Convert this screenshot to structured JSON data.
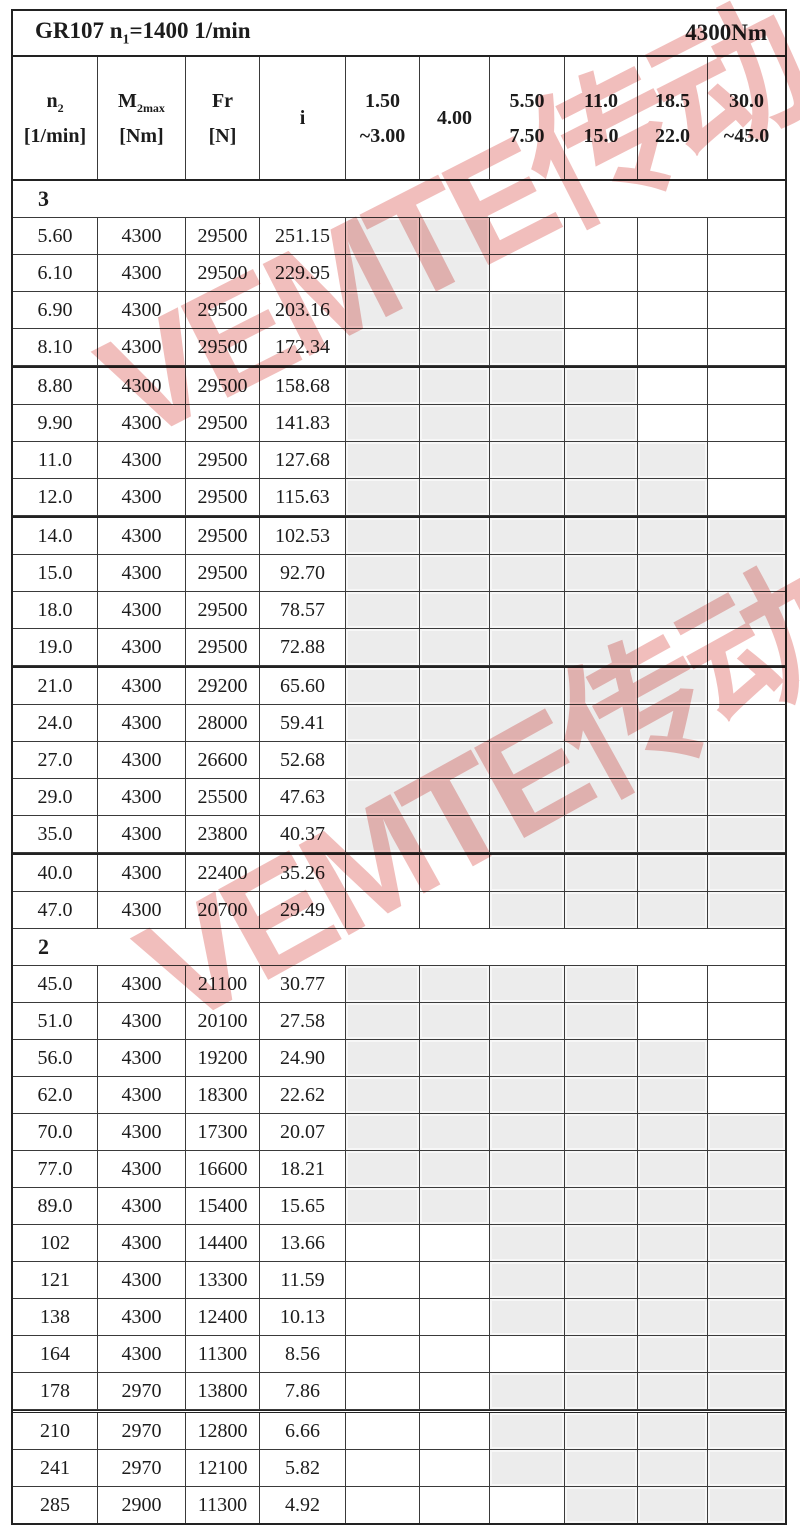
{
  "title": {
    "model_prefix": "GR107 n",
    "model_sub": "1",
    "model_suffix": "=1400 1/min",
    "torque": "4300Nm"
  },
  "columns": [
    {
      "main": "n",
      "sub": "2",
      "line2": "[1/min]"
    },
    {
      "main": "M",
      "sub": "2max",
      "line2": "[Nm]"
    },
    {
      "main": "Fr",
      "sub": "",
      "line2": "[N]"
    },
    {
      "main": "i",
      "sub": "",
      "line2": ""
    },
    {
      "main": "1.50",
      "sub": "",
      "line2": "~3.00"
    },
    {
      "main": "4.00",
      "sub": "",
      "line2": ""
    },
    {
      "main": "5.50",
      "sub": "",
      "line2": "7.50"
    },
    {
      "main": "11.0",
      "sub": "",
      "line2": "15.0"
    },
    {
      "main": "18.5",
      "sub": "",
      "line2": "22.0"
    },
    {
      "main": "30.0",
      "sub": "",
      "line2": "~45.0"
    }
  ],
  "shading_color": "#ececec",
  "watermark": {
    "text": "VEMTE传动",
    "color": "#d9534e"
  },
  "sections": [
    {
      "label": "3",
      "rows": [
        {
          "n2": "5.60",
          "m2max": "4300",
          "fr": "29500",
          "i": "251.15",
          "shaded": [
            1,
            1,
            0,
            0,
            0,
            0
          ],
          "border": ""
        },
        {
          "n2": "6.10",
          "m2max": "4300",
          "fr": "29500",
          "i": "229.95",
          "shaded": [
            1,
            1,
            0,
            0,
            0,
            0
          ],
          "border": ""
        },
        {
          "n2": "6.90",
          "m2max": "4300",
          "fr": "29500",
          "i": "203.16",
          "shaded": [
            1,
            1,
            1,
            0,
            0,
            0
          ],
          "border": ""
        },
        {
          "n2": "8.10",
          "m2max": "4300",
          "fr": "29500",
          "i": "172.34",
          "shaded": [
            1,
            1,
            1,
            0,
            0,
            0
          ],
          "border": ""
        },
        {
          "n2": "8.80",
          "m2max": "4300",
          "fr": "29500",
          "i": "158.68",
          "shaded": [
            1,
            1,
            1,
            1,
            0,
            0
          ],
          "border": "heavy"
        },
        {
          "n2": "9.90",
          "m2max": "4300",
          "fr": "29500",
          "i": "141.83",
          "shaded": [
            1,
            1,
            1,
            1,
            0,
            0
          ],
          "border": ""
        },
        {
          "n2": "11.0",
          "m2max": "4300",
          "fr": "29500",
          "i": "127.68",
          "shaded": [
            1,
            1,
            1,
            1,
            1,
            0
          ],
          "border": ""
        },
        {
          "n2": "12.0",
          "m2max": "4300",
          "fr": "29500",
          "i": "115.63",
          "shaded": [
            1,
            1,
            1,
            1,
            1,
            0
          ],
          "border": ""
        },
        {
          "n2": "14.0",
          "m2max": "4300",
          "fr": "29500",
          "i": "102.53",
          "shaded": [
            1,
            1,
            1,
            1,
            1,
            1
          ],
          "border": "heavy"
        },
        {
          "n2": "15.0",
          "m2max": "4300",
          "fr": "29500",
          "i": "92.70",
          "shaded": [
            1,
            1,
            1,
            1,
            1,
            1
          ],
          "border": ""
        },
        {
          "n2": "18.0",
          "m2max": "4300",
          "fr": "29500",
          "i": "78.57",
          "shaded": [
            1,
            1,
            1,
            1,
            1,
            1
          ],
          "border": ""
        },
        {
          "n2": "19.0",
          "m2max": "4300",
          "fr": "29500",
          "i": "72.88",
          "shaded": [
            1,
            1,
            1,
            1,
            0,
            0
          ],
          "border": ""
        },
        {
          "n2": "21.0",
          "m2max": "4300",
          "fr": "29200",
          "i": "65.60",
          "shaded": [
            1,
            1,
            1,
            1,
            1,
            0
          ],
          "border": "heavy"
        },
        {
          "n2": "24.0",
          "m2max": "4300",
          "fr": "28000",
          "i": "59.41",
          "shaded": [
            1,
            1,
            1,
            1,
            1,
            0
          ],
          "border": ""
        },
        {
          "n2": "27.0",
          "m2max": "4300",
          "fr": "26600",
          "i": "52.68",
          "shaded": [
            1,
            1,
            1,
            1,
            1,
            1
          ],
          "border": ""
        },
        {
          "n2": "29.0",
          "m2max": "4300",
          "fr": "25500",
          "i": "47.63",
          "shaded": [
            1,
            1,
            1,
            1,
            1,
            1
          ],
          "border": ""
        },
        {
          "n2": "35.0",
          "m2max": "4300",
          "fr": "23800",
          "i": "40.37",
          "shaded": [
            1,
            1,
            1,
            1,
            1,
            1
          ],
          "border": ""
        },
        {
          "n2": "40.0",
          "m2max": "4300",
          "fr": "22400",
          "i": "35.26",
          "shaded": [
            0,
            0,
            1,
            1,
            1,
            1
          ],
          "border": "heavy"
        },
        {
          "n2": "47.0",
          "m2max": "4300",
          "fr": "20700",
          "i": "29.49",
          "shaded": [
            0,
            0,
            1,
            1,
            1,
            1
          ],
          "border": ""
        }
      ]
    },
    {
      "label": "2",
      "rows": [
        {
          "n2": "45.0",
          "m2max": "4300",
          "fr": "21100",
          "i": "30.77",
          "shaded": [
            1,
            1,
            1,
            1,
            0,
            0
          ],
          "border": ""
        },
        {
          "n2": "51.0",
          "m2max": "4300",
          "fr": "20100",
          "i": "27.58",
          "shaded": [
            1,
            1,
            1,
            1,
            0,
            0
          ],
          "border": ""
        },
        {
          "n2": "56.0",
          "m2max": "4300",
          "fr": "19200",
          "i": "24.90",
          "shaded": [
            1,
            1,
            1,
            1,
            1,
            0
          ],
          "border": ""
        },
        {
          "n2": "62.0",
          "m2max": "4300",
          "fr": "18300",
          "i": "22.62",
          "shaded": [
            1,
            1,
            1,
            1,
            1,
            0
          ],
          "border": ""
        },
        {
          "n2": "70.0",
          "m2max": "4300",
          "fr": "17300",
          "i": "20.07",
          "shaded": [
            1,
            1,
            1,
            1,
            1,
            1
          ],
          "border": ""
        },
        {
          "n2": "77.0",
          "m2max": "4300",
          "fr": "16600",
          "i": "18.21",
          "shaded": [
            1,
            1,
            1,
            1,
            1,
            1
          ],
          "border": ""
        },
        {
          "n2": "89.0",
          "m2max": "4300",
          "fr": "15400",
          "i": "15.65",
          "shaded": [
            1,
            1,
            1,
            1,
            1,
            1
          ],
          "border": ""
        },
        {
          "n2": "102",
          "m2max": "4300",
          "fr": "14400",
          "i": "13.66",
          "shaded": [
            0,
            0,
            1,
            1,
            1,
            1
          ],
          "border": ""
        },
        {
          "n2": "121",
          "m2max": "4300",
          "fr": "13300",
          "i": "11.59",
          "shaded": [
            0,
            0,
            1,
            1,
            1,
            1
          ],
          "border": ""
        },
        {
          "n2": "138",
          "m2max": "4300",
          "fr": "12400",
          "i": "10.13",
          "shaded": [
            0,
            0,
            1,
            1,
            1,
            1
          ],
          "border": ""
        },
        {
          "n2": "164",
          "m2max": "4300",
          "fr": "11300",
          "i": "8.56",
          "shaded": [
            0,
            0,
            0,
            1,
            1,
            1
          ],
          "border": ""
        },
        {
          "n2": "178",
          "m2max": "2970",
          "fr": "13800",
          "i": "7.86",
          "shaded": [
            0,
            0,
            1,
            1,
            1,
            1
          ],
          "border": ""
        },
        {
          "n2": "210",
          "m2max": "2970",
          "fr": "12800",
          "i": "6.66",
          "shaded": [
            0,
            0,
            1,
            1,
            1,
            1
          ],
          "border": "double"
        },
        {
          "n2": "241",
          "m2max": "2970",
          "fr": "12100",
          "i": "5.82",
          "shaded": [
            0,
            0,
            1,
            1,
            1,
            1
          ],
          "border": ""
        },
        {
          "n2": "285",
          "m2max": "2900",
          "fr": "11300",
          "i": "4.92",
          "shaded": [
            0,
            0,
            0,
            1,
            1,
            1
          ],
          "border": ""
        }
      ]
    }
  ]
}
